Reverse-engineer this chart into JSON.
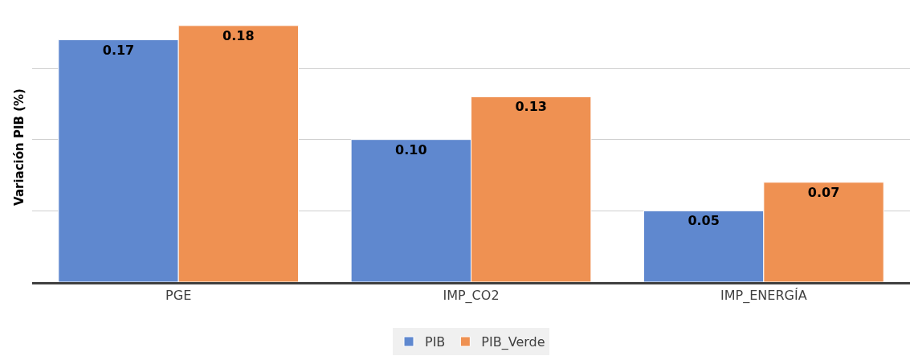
{
  "chart_data": {
    "type": "bar",
    "ylabel": "Variación PIB (%)",
    "categories": [
      "PGE",
      "IMP_CO2",
      "IMP_ENERGÍA"
    ],
    "series": [
      {
        "name": "PIB",
        "color": "#5f88cf",
        "values": [
          0.17,
          0.1,
          0.05
        ],
        "value_labels": [
          "0.17",
          "0.10",
          "0.05"
        ]
      },
      {
        "name": "PIB_Verde",
        "color": "#ef9152",
        "values": [
          0.18,
          0.13,
          0.07
        ],
        "value_labels": [
          "0.18",
          "0.13",
          "0.07"
        ]
      }
    ],
    "tick_labels": "x",
    "grid": "y",
    "legend": "bottom"
  }
}
